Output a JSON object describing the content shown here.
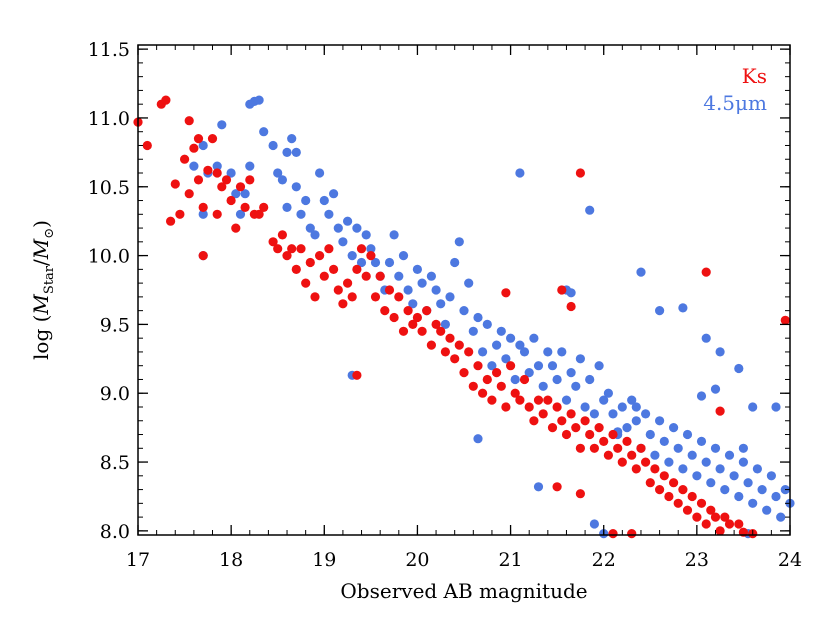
{
  "chart_data": {
    "type": "scatter",
    "xlabel": "Observed AB magnitude",
    "ylabel": {
      "prefix": "log (",
      "M": "M",
      "sub": "Star",
      "slash": "/",
      "M2": "M",
      "sun": "⊙",
      "suffix": ")"
    },
    "xlim": [
      17,
      24
    ],
    "ylim": [
      7.97,
      11.53
    ],
    "xticks": [
      17,
      18,
      19,
      20,
      21,
      22,
      23,
      24
    ],
    "xtick_labels": [
      "17",
      "18",
      "19",
      "20",
      "21",
      "22",
      "23",
      "24"
    ],
    "yticks": [
      8.0,
      8.5,
      9.0,
      9.5,
      10.0,
      10.5,
      11.0,
      11.5
    ],
    "ytick_labels": [
      "8.0",
      "8.5",
      "9.0",
      "9.5",
      "10.0",
      "10.5",
      "11.0",
      "11.5"
    ],
    "grid": false,
    "legend_position": "top-right",
    "series": [
      {
        "name": "4.5µm",
        "legend_label": "4.5μm",
        "color": "#4d78e0",
        "points": [
          [
            17.6,
            10.65
          ],
          [
            17.7,
            10.8
          ],
          [
            17.75,
            10.6
          ],
          [
            17.7,
            10.3
          ],
          [
            17.7,
            10.0
          ],
          [
            17.85,
            10.65
          ],
          [
            17.9,
            10.95
          ],
          [
            18.0,
            10.6
          ],
          [
            18.05,
            10.45
          ],
          [
            18.1,
            10.3
          ],
          [
            18.15,
            10.45
          ],
          [
            18.2,
            10.65
          ],
          [
            18.25,
            11.12
          ],
          [
            18.2,
            11.1
          ],
          [
            18.3,
            11.13
          ],
          [
            18.35,
            10.9
          ],
          [
            18.45,
            10.8
          ],
          [
            18.5,
            10.6
          ],
          [
            18.55,
            10.55
          ],
          [
            18.6,
            10.75
          ],
          [
            18.65,
            10.85
          ],
          [
            18.7,
            10.75
          ],
          [
            18.6,
            10.35
          ],
          [
            18.7,
            10.5
          ],
          [
            18.75,
            10.3
          ],
          [
            18.8,
            10.4
          ],
          [
            18.85,
            10.2
          ],
          [
            18.9,
            10.15
          ],
          [
            18.95,
            10.6
          ],
          [
            19.0,
            10.4
          ],
          [
            19.05,
            10.3
          ],
          [
            19.1,
            10.45
          ],
          [
            19.15,
            10.2
          ],
          [
            19.2,
            10.1
          ],
          [
            19.25,
            10.25
          ],
          [
            19.3,
            10.0
          ],
          [
            19.35,
            10.2
          ],
          [
            19.4,
            9.95
          ],
          [
            19.45,
            10.15
          ],
          [
            19.5,
            10.05
          ],
          [
            19.55,
            9.95
          ],
          [
            19.6,
            9.85
          ],
          [
            19.65,
            9.75
          ],
          [
            19.7,
            9.95
          ],
          [
            19.75,
            10.15
          ],
          [
            19.8,
            9.85
          ],
          [
            19.85,
            10.0
          ],
          [
            19.9,
            9.75
          ],
          [
            19.95,
            9.65
          ],
          [
            20.0,
            9.9
          ],
          [
            20.05,
            9.8
          ],
          [
            20.1,
            9.6
          ],
          [
            20.15,
            9.85
          ],
          [
            20.2,
            9.75
          ],
          [
            20.25,
            9.65
          ],
          [
            20.3,
            9.5
          ],
          [
            20.35,
            9.7
          ],
          [
            20.4,
            9.95
          ],
          [
            20.45,
            10.1
          ],
          [
            20.5,
            9.6
          ],
          [
            20.55,
            9.8
          ],
          [
            20.6,
            9.45
          ],
          [
            20.65,
            9.55
          ],
          [
            20.7,
            9.3
          ],
          [
            20.75,
            9.5
          ],
          [
            20.8,
            9.2
          ],
          [
            20.85,
            9.35
          ],
          [
            20.9,
            9.45
          ],
          [
            20.95,
            9.25
          ],
          [
            21.0,
            9.4
          ],
          [
            21.05,
            9.1
          ],
          [
            21.1,
            9.35
          ],
          [
            21.15,
            9.3
          ],
          [
            21.2,
            9.15
          ],
          [
            21.25,
            9.4
          ],
          [
            21.3,
            9.2
          ],
          [
            21.35,
            9.05
          ],
          [
            21.4,
            9.3
          ],
          [
            21.45,
            9.2
          ],
          [
            21.5,
            9.1
          ],
          [
            21.55,
            9.3
          ],
          [
            21.6,
            8.95
          ],
          [
            21.65,
            9.15
          ],
          [
            21.7,
            9.05
          ],
          [
            21.75,
            9.25
          ],
          [
            21.8,
            8.9
          ],
          [
            21.85,
            9.1
          ],
          [
            21.9,
            8.85
          ],
          [
            21.95,
            9.2
          ],
          [
            22.0,
            8.95
          ],
          [
            22.05,
            9.0
          ],
          [
            22.1,
            8.85
          ],
          [
            22.15,
            8.7
          ],
          [
            22.2,
            8.9
          ],
          [
            22.25,
            8.75
          ],
          [
            22.3,
            8.95
          ],
          [
            22.35,
            8.8
          ],
          [
            22.4,
            8.6
          ],
          [
            22.45,
            8.85
          ],
          [
            22.5,
            8.7
          ],
          [
            22.55,
            8.55
          ],
          [
            22.6,
            8.8
          ],
          [
            22.65,
            8.65
          ],
          [
            22.7,
            8.5
          ],
          [
            22.75,
            8.75
          ],
          [
            22.8,
            8.6
          ],
          [
            22.85,
            8.45
          ],
          [
            22.9,
            8.7
          ],
          [
            22.95,
            8.55
          ],
          [
            23.0,
            8.4
          ],
          [
            23.05,
            8.65
          ],
          [
            23.1,
            8.5
          ],
          [
            23.15,
            8.35
          ],
          [
            23.2,
            8.6
          ],
          [
            23.25,
            8.45
          ],
          [
            23.3,
            8.3
          ],
          [
            23.35,
            8.55
          ],
          [
            23.4,
            8.4
          ],
          [
            23.45,
            8.25
          ],
          [
            23.5,
            8.5
          ],
          [
            23.55,
            8.35
          ],
          [
            23.6,
            8.2
          ],
          [
            23.65,
            8.45
          ],
          [
            23.7,
            8.3
          ],
          [
            23.75,
            8.15
          ],
          [
            23.8,
            8.4
          ],
          [
            23.85,
            8.25
          ],
          [
            23.9,
            8.1
          ],
          [
            23.95,
            8.3
          ],
          [
            24.0,
            8.2
          ],
          [
            19.3,
            9.13
          ],
          [
            20.65,
            8.67
          ],
          [
            21.1,
            10.6
          ],
          [
            21.85,
            10.33
          ],
          [
            21.3,
            8.32
          ],
          [
            22.4,
            9.88
          ],
          [
            22.6,
            9.6
          ],
          [
            22.85,
            9.62
          ],
          [
            23.1,
            9.4
          ],
          [
            23.25,
            9.3
          ],
          [
            23.45,
            9.18
          ],
          [
            23.2,
            9.03
          ],
          [
            23.05,
            8.98
          ],
          [
            23.6,
            8.9
          ],
          [
            23.85,
            8.9
          ],
          [
            23.5,
            8.6
          ],
          [
            21.9,
            8.05
          ],
          [
            21.6,
            9.75
          ],
          [
            22.0,
            7.98
          ],
          [
            21.65,
            9.73
          ],
          [
            22.35,
            8.9
          ],
          [
            22.15,
            8.72
          ],
          [
            23.55,
            7.98
          ]
        ]
      },
      {
        "name": "Ks",
        "legend_label": "Ks",
        "color": "#ee1111",
        "points": [
          [
            17.0,
            10.97
          ],
          [
            17.1,
            10.8
          ],
          [
            17.25,
            11.1
          ],
          [
            17.3,
            11.13
          ],
          [
            17.35,
            10.25
          ],
          [
            17.4,
            10.52
          ],
          [
            17.45,
            10.3
          ],
          [
            17.5,
            10.7
          ],
          [
            17.55,
            10.98
          ],
          [
            17.55,
            10.45
          ],
          [
            17.6,
            10.78
          ],
          [
            17.65,
            10.85
          ],
          [
            17.65,
            10.55
          ],
          [
            17.7,
            10.35
          ],
          [
            17.7,
            10.0
          ],
          [
            17.75,
            10.62
          ],
          [
            17.8,
            10.85
          ],
          [
            17.85,
            10.6
          ],
          [
            17.85,
            10.3
          ],
          [
            17.9,
            10.5
          ],
          [
            17.95,
            10.55
          ],
          [
            18.0,
            10.4
          ],
          [
            18.05,
            10.2
          ],
          [
            18.1,
            10.5
          ],
          [
            18.15,
            10.35
          ],
          [
            18.2,
            10.55
          ],
          [
            18.25,
            10.3
          ],
          [
            18.3,
            10.3
          ],
          [
            18.35,
            10.35
          ],
          [
            18.45,
            10.1
          ],
          [
            18.5,
            10.05
          ],
          [
            18.55,
            10.15
          ],
          [
            18.6,
            10.0
          ],
          [
            18.65,
            10.05
          ],
          [
            18.7,
            9.9
          ],
          [
            18.75,
            10.05
          ],
          [
            18.8,
            9.8
          ],
          [
            18.85,
            9.95
          ],
          [
            18.9,
            9.7
          ],
          [
            18.95,
            10.0
          ],
          [
            19.0,
            9.85
          ],
          [
            19.05,
            10.05
          ],
          [
            19.1,
            9.9
          ],
          [
            19.15,
            9.75
          ],
          [
            19.2,
            9.65
          ],
          [
            19.25,
            9.8
          ],
          [
            19.3,
            9.7
          ],
          [
            19.35,
            9.9
          ],
          [
            19.4,
            10.05
          ],
          [
            19.45,
            9.85
          ],
          [
            19.5,
            10.0
          ],
          [
            19.55,
            9.7
          ],
          [
            19.6,
            9.85
          ],
          [
            19.65,
            9.6
          ],
          [
            19.7,
            9.75
          ],
          [
            19.75,
            9.55
          ],
          [
            19.8,
            9.7
          ],
          [
            19.85,
            9.45
          ],
          [
            19.9,
            9.6
          ],
          [
            19.95,
            9.5
          ],
          [
            20.0,
            9.55
          ],
          [
            20.05,
            9.45
          ],
          [
            20.1,
            9.6
          ],
          [
            20.15,
            9.35
          ],
          [
            20.2,
            9.5
          ],
          [
            20.25,
            9.45
          ],
          [
            20.3,
            9.3
          ],
          [
            20.35,
            9.4
          ],
          [
            20.4,
            9.25
          ],
          [
            20.45,
            9.35
          ],
          [
            20.5,
            9.15
          ],
          [
            20.55,
            9.3
          ],
          [
            20.6,
            9.05
          ],
          [
            20.65,
            9.2
          ],
          [
            20.7,
            9.0
          ],
          [
            20.75,
            9.1
          ],
          [
            20.8,
            8.95
          ],
          [
            20.85,
            9.15
          ],
          [
            20.9,
            9.05
          ],
          [
            20.95,
            8.9
          ],
          [
            21.0,
            9.2
          ],
          [
            21.05,
            9.0
          ],
          [
            21.1,
            8.95
          ],
          [
            21.15,
            9.1
          ],
          [
            21.2,
            8.9
          ],
          [
            21.25,
            8.8
          ],
          [
            21.3,
            8.95
          ],
          [
            21.35,
            8.85
          ],
          [
            21.4,
            8.95
          ],
          [
            21.45,
            8.75
          ],
          [
            21.5,
            8.9
          ],
          [
            21.55,
            8.8
          ],
          [
            21.6,
            8.7
          ],
          [
            21.65,
            8.85
          ],
          [
            21.7,
            8.75
          ],
          [
            21.75,
            8.6
          ],
          [
            21.8,
            8.8
          ],
          [
            21.85,
            8.7
          ],
          [
            21.9,
            8.6
          ],
          [
            21.95,
            8.75
          ],
          [
            22.0,
            8.65
          ],
          [
            22.05,
            8.55
          ],
          [
            22.1,
            8.7
          ],
          [
            22.15,
            8.6
          ],
          [
            22.2,
            8.5
          ],
          [
            22.25,
            8.65
          ],
          [
            22.3,
            8.55
          ],
          [
            22.35,
            8.45
          ],
          [
            22.4,
            8.6
          ],
          [
            22.45,
            8.5
          ],
          [
            22.5,
            8.35
          ],
          [
            22.55,
            8.45
          ],
          [
            22.6,
            8.3
          ],
          [
            22.65,
            8.4
          ],
          [
            22.7,
            8.25
          ],
          [
            22.75,
            8.35
          ],
          [
            22.8,
            8.2
          ],
          [
            22.85,
            8.3
          ],
          [
            22.9,
            8.15
          ],
          [
            22.95,
            8.25
          ],
          [
            23.0,
            8.1
          ],
          [
            23.05,
            8.2
          ],
          [
            23.1,
            8.05
          ],
          [
            23.15,
            8.15
          ],
          [
            23.2,
            8.1
          ],
          [
            23.25,
            8.0
          ],
          [
            23.3,
            8.1
          ],
          [
            23.35,
            8.05
          ],
          [
            23.45,
            8.05
          ],
          [
            23.5,
            7.99
          ],
          [
            23.6,
            7.98
          ],
          [
            19.35,
            9.13
          ],
          [
            20.95,
            9.73
          ],
          [
            21.75,
            10.6
          ],
          [
            21.65,
            9.63
          ],
          [
            21.5,
            8.32
          ],
          [
            22.1,
            7.98
          ],
          [
            23.1,
            9.88
          ],
          [
            23.25,
            8.87
          ],
          [
            23.95,
            9.53
          ],
          [
            21.75,
            8.27
          ],
          [
            22.3,
            7.98
          ],
          [
            21.55,
            9.75
          ]
        ]
      }
    ]
  }
}
